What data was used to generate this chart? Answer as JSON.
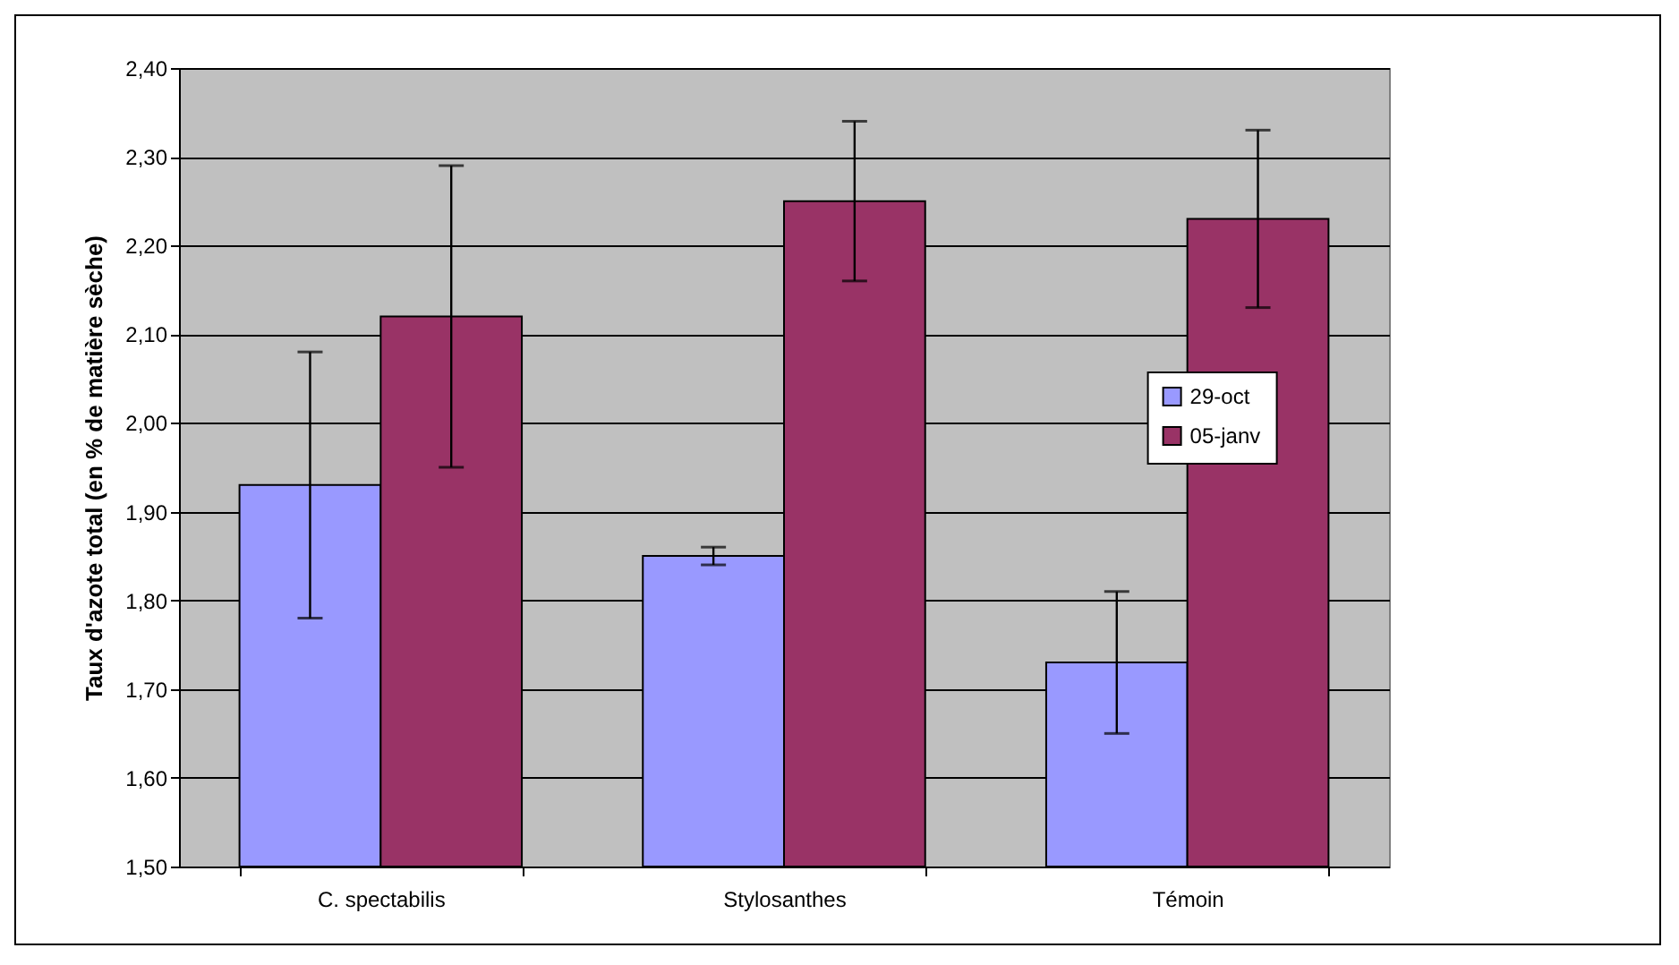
{
  "chart_data": {
    "type": "bar",
    "ylabel": "Taux d'azote total (en % de matière sèche)",
    "categories": [
      "C. spectabilis",
      "Stylosanthes",
      "Témoin"
    ],
    "series": [
      {
        "name": "29-oct",
        "color": "#9999ff",
        "values": [
          1.93,
          1.85,
          1.73
        ],
        "errors": [
          0.15,
          0.01,
          0.08
        ]
      },
      {
        "name": "05-janv",
        "color": "#993366",
        "values": [
          2.12,
          2.25,
          2.23
        ],
        "errors": [
          0.17,
          0.09,
          0.1
        ]
      }
    ],
    "ylim": [
      1.5,
      2.4
    ],
    "yticks": [
      {
        "value": 1.5,
        "label": "1,50"
      },
      {
        "value": 1.6,
        "label": "1,60"
      },
      {
        "value": 1.7,
        "label": "1,70"
      },
      {
        "value": 1.8,
        "label": "1,80"
      },
      {
        "value": 1.9,
        "label": "1,90"
      },
      {
        "value": 2.0,
        "label": "2,00"
      },
      {
        "value": 2.1,
        "label": "2,10"
      },
      {
        "value": 2.2,
        "label": "2,20"
      },
      {
        "value": 2.3,
        "label": "2,30"
      },
      {
        "value": 2.4,
        "label": "2,40"
      }
    ],
    "grid": "y",
    "legend": "right"
  }
}
